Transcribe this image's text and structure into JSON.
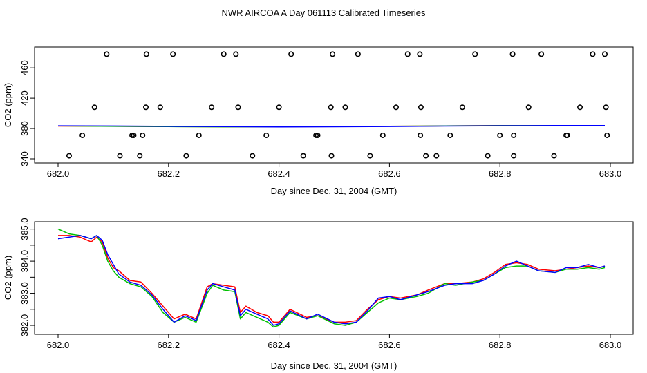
{
  "page_title": "NWR AIRCOA A  Day 061113  Calibrated Timeseries",
  "colors": {
    "red": "#ff0000",
    "green": "#00c000",
    "blue": "#0000ff",
    "points": "#000000"
  },
  "chart_data": [
    {
      "type": "scatter",
      "panel": "top",
      "xlabel": "Day since Dec. 31, 2004 (GMT)",
      "ylabel": "CO2 (ppm)",
      "xlim": [
        682.0,
        683.0
      ],
      "ylim": [
        340,
        482
      ],
      "xticks": [
        682.0,
        682.2,
        682.4,
        682.6,
        682.8,
        683.0
      ],
      "xtick_labels": [
        "682.0",
        "682.2",
        "682.4",
        "682.6",
        "682.8",
        "683.0"
      ],
      "yticks": [
        340,
        380,
        420,
        460
      ],
      "ytick_labels": [
        "340",
        "380",
        "420",
        "460"
      ],
      "grid": false,
      "points": {
        "x": [
          682.02,
          682.044,
          682.066,
          682.088,
          682.112,
          682.134,
          682.148,
          682.16,
          682.185,
          682.208,
          682.232,
          682.255,
          682.278,
          682.3,
          682.322,
          682.326,
          682.352,
          682.377,
          682.4,
          682.422,
          682.444,
          682.467,
          682.495,
          682.497,
          682.52,
          682.543,
          682.565,
          682.588,
          682.612,
          682.633,
          682.655,
          682.657,
          682.666,
          682.685,
          682.71,
          682.732,
          682.755,
          682.778,
          682.8,
          682.823,
          682.825,
          682.852,
          682.875,
          682.898,
          682.922,
          682.945,
          682.968,
          682.99,
          682.992,
          682.994,
          682.137,
          682.153,
          682.159,
          682.47,
          682.494,
          682.656,
          682.825,
          682.92
        ],
        "y": [
          344,
          371,
          408,
          478,
          344,
          371,
          344,
          478,
          408,
          478,
          344,
          371,
          408,
          478,
          478,
          408,
          344,
          371,
          408,
          478,
          344,
          371,
          344,
          478,
          408,
          478,
          344,
          371,
          408,
          478,
          478,
          408,
          344,
          344,
          371,
          408,
          478,
          344,
          371,
          478,
          344,
          408,
          478,
          344,
          371,
          408,
          478,
          478,
          408,
          371,
          371,
          371,
          408,
          371,
          408,
          371,
          371,
          371
        ]
      },
      "series": [
        {
          "name": "",
          "color": "red",
          "values": [
            383.2,
            383.0,
            382.6,
            382.3,
            382.4,
            382.6,
            383.0,
            383.4,
            383.9,
            383.8,
            383.6
          ]
        },
        {
          "name": "",
          "color": "green",
          "values": [
            383.4,
            382.9,
            382.5,
            382.2,
            382.4,
            382.7,
            383.0,
            383.4,
            383.8,
            383.8,
            383.6
          ]
        },
        {
          "name": "",
          "color": "blue",
          "values": [
            383.6,
            383.3,
            382.9,
            382.5,
            382.1,
            382.3,
            382.7,
            383.2,
            383.6,
            383.9,
            384.0
          ]
        }
      ],
      "series_x": [
        682.0,
        682.1,
        682.2,
        682.3,
        682.4,
        682.5,
        682.6,
        682.7,
        682.8,
        682.9,
        682.99
      ]
    },
    {
      "type": "line",
      "panel": "bottom",
      "xlabel": "Day since Dec. 31, 2004 (GMT)",
      "ylabel": "CO2 (ppm)",
      "xlim": [
        682.0,
        683.0
      ],
      "ylim": [
        381.85,
        385.1
      ],
      "xticks": [
        682.0,
        682.2,
        682.4,
        682.6,
        682.8,
        683.0
      ],
      "xtick_labels": [
        "682.0",
        "682.2",
        "682.4",
        "682.6",
        "682.8",
        "683.0"
      ],
      "yticks": [
        382.0,
        383.0,
        384.0,
        385.0
      ],
      "ytick_labels": [
        "382.0",
        "383.0",
        "384.0",
        "385.0"
      ],
      "minor_yticks": [
        382.5,
        383.5,
        384.5
      ],
      "grid": false,
      "x": [
        682.0,
        682.02,
        682.04,
        682.06,
        682.07,
        682.08,
        682.09,
        682.1,
        682.11,
        682.13,
        682.15,
        682.17,
        682.19,
        682.21,
        682.23,
        682.25,
        682.27,
        682.28,
        682.3,
        682.32,
        682.33,
        682.34,
        682.36,
        682.38,
        682.39,
        682.4,
        682.42,
        682.45,
        682.47,
        682.5,
        682.52,
        682.54,
        682.56,
        682.58,
        682.6,
        682.62,
        682.65,
        682.67,
        682.7,
        682.72,
        682.75,
        682.77,
        682.79,
        682.81,
        682.83,
        682.85,
        682.87,
        682.9,
        682.92,
        682.94,
        682.96,
        682.98,
        682.99
      ],
      "series": [
        {
          "name": "",
          "color": "red",
          "values": [
            384.8,
            384.8,
            384.75,
            384.6,
            384.75,
            384.6,
            384.1,
            383.8,
            383.7,
            383.4,
            383.35,
            383.0,
            382.6,
            382.2,
            382.35,
            382.2,
            383.2,
            383.3,
            383.25,
            383.2,
            382.4,
            382.6,
            382.4,
            382.3,
            382.1,
            382.1,
            382.5,
            382.25,
            382.3,
            382.1,
            382.1,
            382.15,
            382.5,
            382.8,
            382.9,
            382.85,
            382.95,
            383.1,
            383.3,
            383.3,
            383.35,
            383.45,
            383.65,
            383.9,
            383.95,
            383.9,
            383.75,
            383.7,
            383.75,
            383.8,
            383.85,
            383.8,
            383.85
          ]
        },
        {
          "name": "",
          "color": "green",
          "values": [
            385.0,
            384.85,
            384.8,
            384.7,
            384.8,
            384.5,
            384.0,
            383.7,
            383.5,
            383.3,
            383.2,
            382.9,
            382.4,
            382.1,
            382.25,
            382.1,
            383.0,
            383.25,
            383.1,
            383.05,
            382.2,
            382.4,
            382.25,
            382.1,
            381.95,
            382.0,
            382.4,
            382.2,
            382.3,
            382.05,
            382.0,
            382.1,
            382.4,
            382.7,
            382.85,
            382.8,
            382.9,
            383.0,
            383.3,
            383.25,
            383.35,
            383.4,
            383.6,
            383.8,
            383.85,
            383.85,
            383.7,
            383.65,
            383.75,
            383.75,
            383.8,
            383.75,
            383.8
          ]
        },
        {
          "name": "",
          "color": "blue",
          "values": [
            384.7,
            384.75,
            384.8,
            384.7,
            384.8,
            384.65,
            384.2,
            383.9,
            383.6,
            383.35,
            383.25,
            382.95,
            382.5,
            382.1,
            382.3,
            382.15,
            383.1,
            383.3,
            383.2,
            383.1,
            382.3,
            382.5,
            382.35,
            382.2,
            382.0,
            382.05,
            382.45,
            382.2,
            382.35,
            382.1,
            382.05,
            382.1,
            382.45,
            382.85,
            382.9,
            382.8,
            382.95,
            383.05,
            383.25,
            383.3,
            383.3,
            383.4,
            383.6,
            383.85,
            384.0,
            383.85,
            383.7,
            383.65,
            383.8,
            383.8,
            383.9,
            383.8,
            383.85
          ]
        }
      ]
    }
  ]
}
